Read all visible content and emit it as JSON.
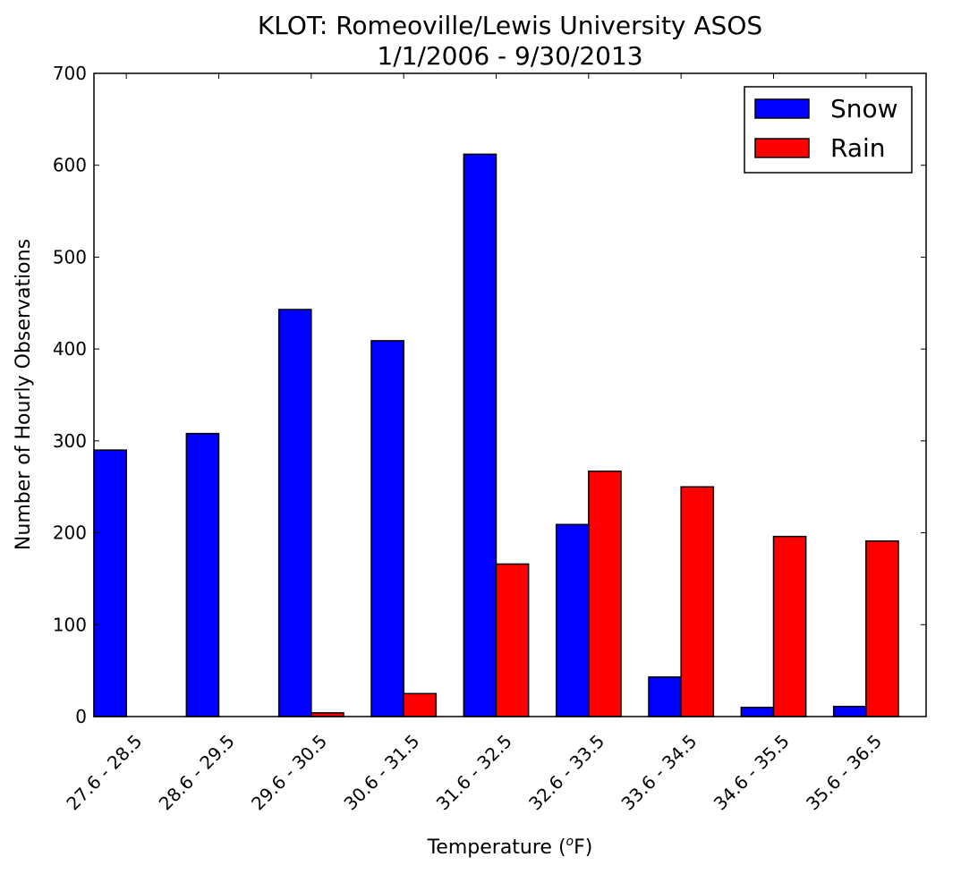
{
  "chart_data": {
    "type": "bar",
    "title": "KLOT: Romeoville/Lewis University ASOS",
    "subtitle": "1/1/2006 - 9/30/2013",
    "xlabel": "Temperature (",
    "xlabel_superscript": "o",
    "xlabel_suffix": "F)",
    "ylabel": "Number of Hourly Observations",
    "ylim": [
      0,
      700
    ],
    "yticks": [
      "0",
      "100",
      "200",
      "300",
      "400",
      "500",
      "600",
      "700"
    ],
    "categories": [
      "27.6 - 28.5",
      "28.6 - 29.5",
      "29.6 - 30.5",
      "30.6 - 31.5",
      "31.6 - 32.5",
      "32.6 - 33.5",
      "33.6 - 34.5",
      "34.6 - 35.5",
      "35.6 - 36.5"
    ],
    "series": [
      {
        "name": "Snow",
        "color": "#0000ff",
        "values": [
          290,
          308,
          443,
          409,
          612,
          209,
          43,
          10,
          11
        ]
      },
      {
        "name": "Rain",
        "color": "#ff0000",
        "values": [
          0,
          0,
          4,
          25,
          166,
          267,
          250,
          196,
          191
        ]
      }
    ],
    "grid": false,
    "legend_position": "top-right"
  }
}
